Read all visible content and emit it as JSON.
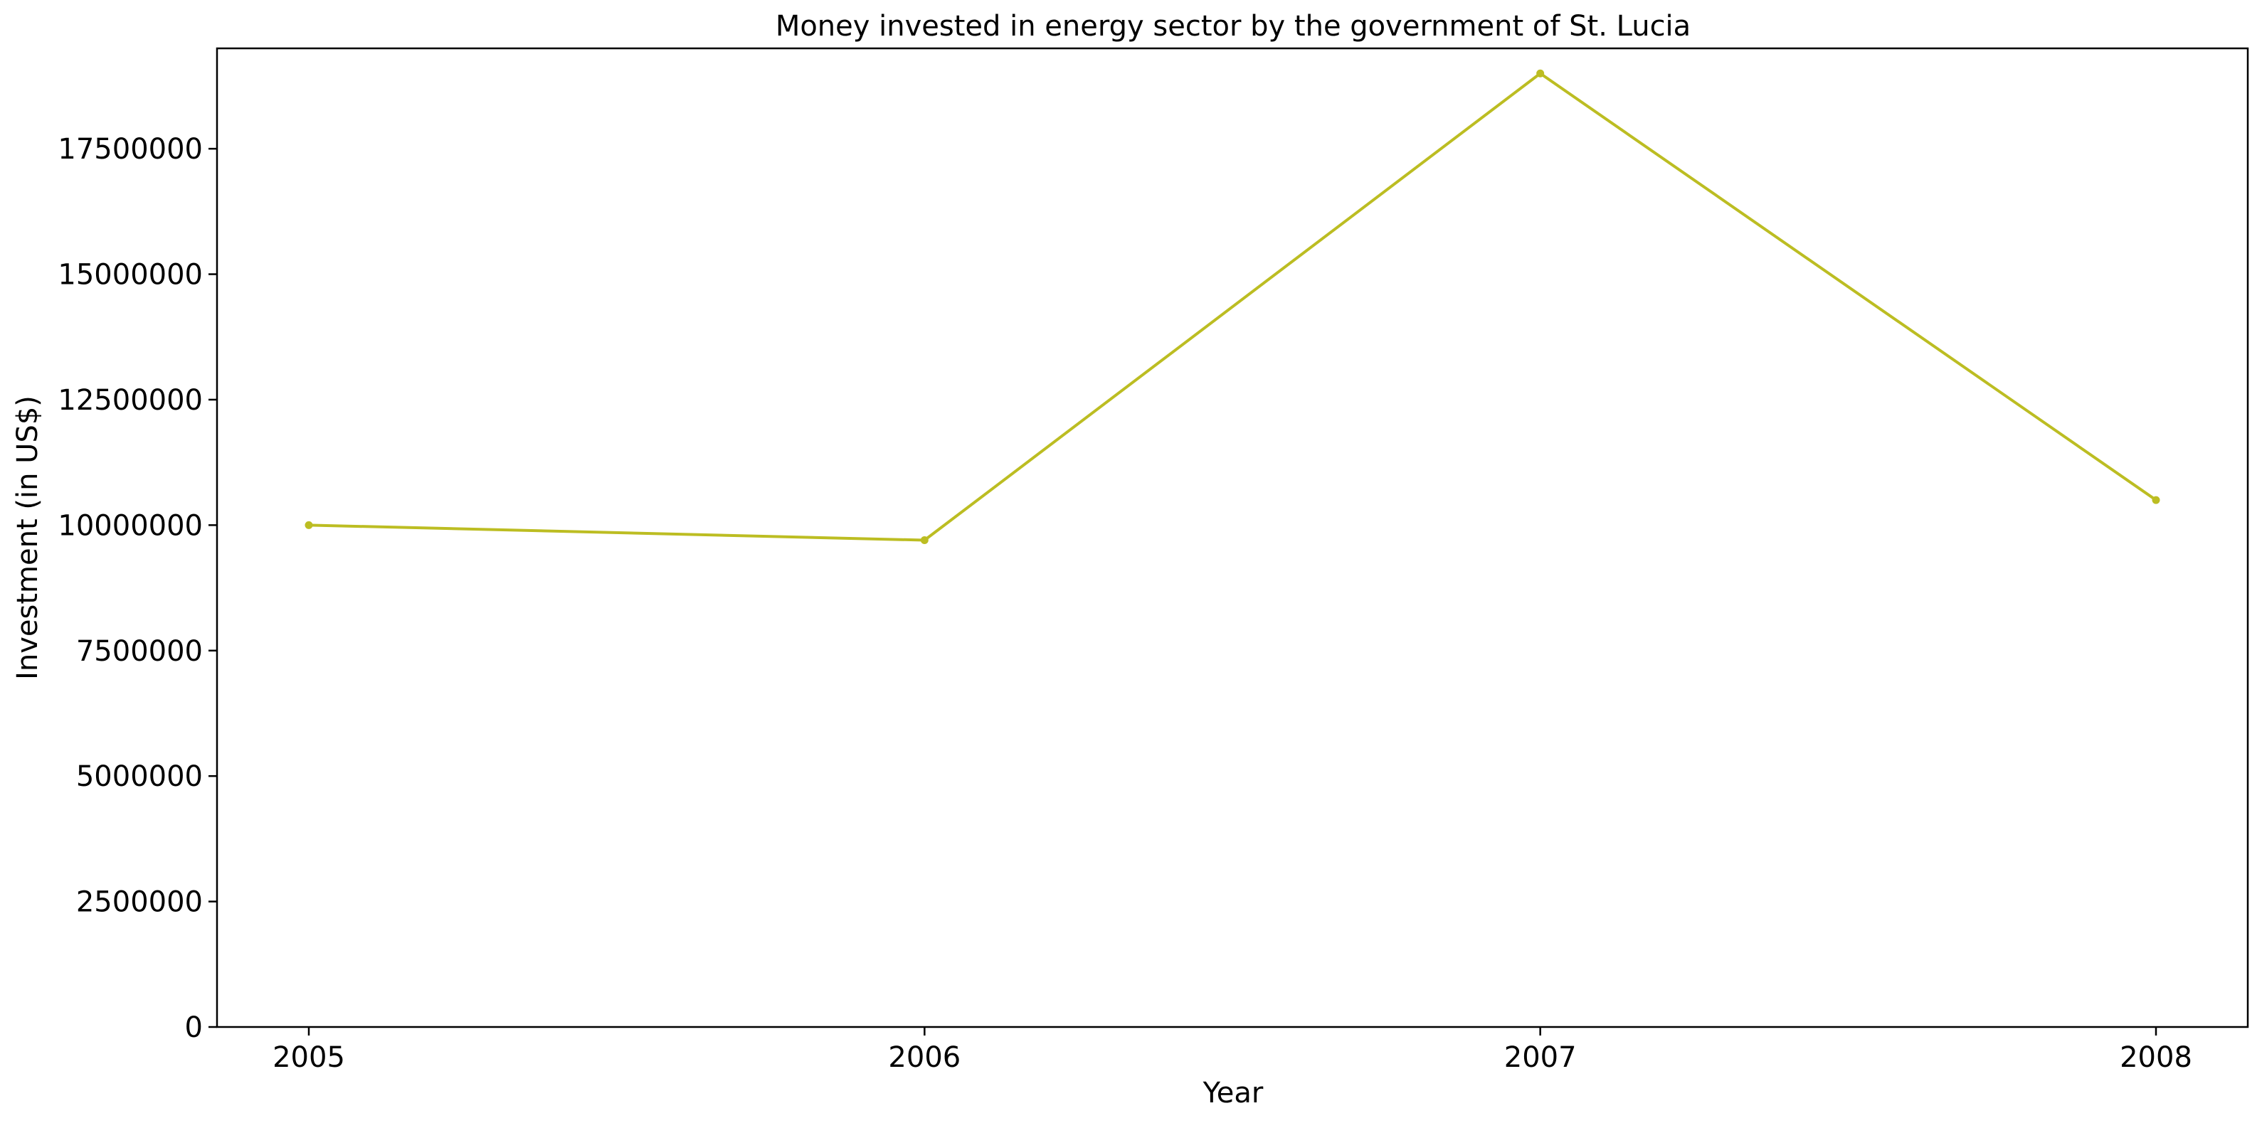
{
  "chart_data": {
    "type": "line",
    "title": "Money invested in energy sector by the government of St. Lucia",
    "xlabel": "Year",
    "ylabel": "Investment (in US$)",
    "categories": [
      "2005",
      "2006",
      "2007",
      "2008"
    ],
    "series": [
      {
        "values": [
          10000000,
          9700000,
          19000000,
          10500000
        ],
        "color": "#bcbd22"
      }
    ],
    "ylim": [
      0,
      19500000
    ],
    "yticks": [
      0,
      2500000,
      5000000,
      7500000,
      10000000,
      12500000,
      15000000,
      17500000
    ],
    "ytick_labels": [
      "0",
      "2500000",
      "5000000",
      "7500000",
      "10000000",
      "12500000",
      "15000000",
      "17500000"
    ],
    "grid": false,
    "marker": "dot"
  }
}
